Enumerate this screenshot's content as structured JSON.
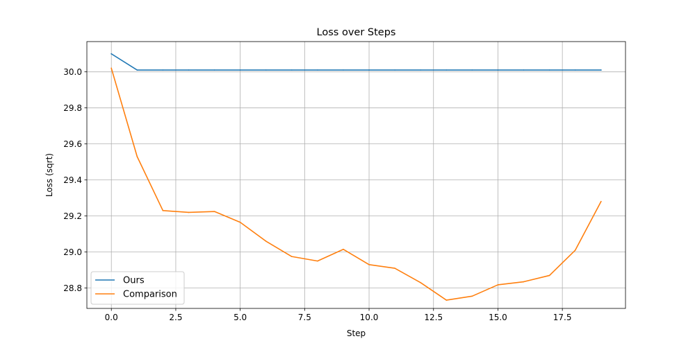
{
  "chart_data": {
    "type": "line",
    "title": "Loss over Steps",
    "xlabel": "Step",
    "ylabel": "Loss (sqrt)",
    "xlim": [
      -0.95,
      19.95
    ],
    "ylim": [
      28.687,
      30.168
    ],
    "xticks": [
      0.0,
      2.5,
      5.0,
      7.5,
      10.0,
      12.5,
      15.0,
      17.5
    ],
    "xtick_labels": [
      "0.0",
      "2.5",
      "5.0",
      "7.5",
      "10.0",
      "12.5",
      "15.0",
      "17.5"
    ],
    "yticks": [
      28.8,
      29.0,
      29.2,
      29.4,
      29.6,
      29.8,
      30.0
    ],
    "ytick_labels": [
      "28.8",
      "29.0",
      "29.2",
      "29.4",
      "29.6",
      "29.8",
      "30.0"
    ],
    "grid": true,
    "legend_position": "lower-left",
    "x": [
      0,
      1,
      2,
      3,
      4,
      5,
      6,
      7,
      8,
      9,
      10,
      11,
      12,
      13,
      14,
      15,
      16,
      17,
      18,
      19
    ],
    "series": [
      {
        "name": "Ours",
        "color": "#1f77b4",
        "values": [
          30.1,
          30.01,
          30.01,
          30.01,
          30.01,
          30.01,
          30.01,
          30.01,
          30.01,
          30.01,
          30.01,
          30.01,
          30.01,
          30.01,
          30.01,
          30.01,
          30.01,
          30.01,
          30.01,
          30.01
        ]
      },
      {
        "name": "Comparison",
        "color": "#ff7f0e",
        "values": [
          30.02,
          29.53,
          29.23,
          29.22,
          29.225,
          29.165,
          29.06,
          28.975,
          28.95,
          29.015,
          28.93,
          28.91,
          28.83,
          28.733,
          28.755,
          28.818,
          28.835,
          28.87,
          29.01,
          29.28
        ]
      }
    ]
  }
}
